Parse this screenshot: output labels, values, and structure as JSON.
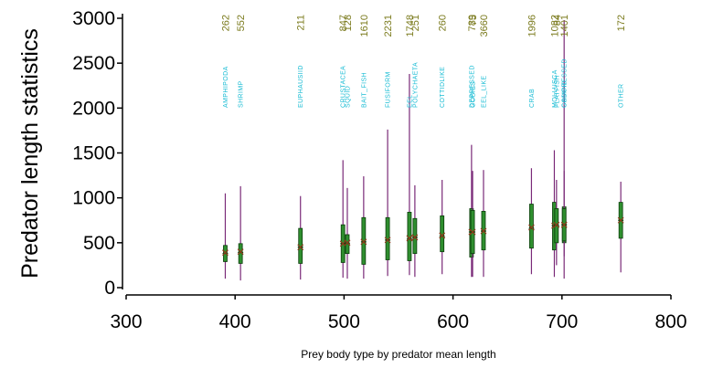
{
  "chart_data": {
    "type": "box",
    "xlabel": "Prey body type by predator mean length",
    "ylabel": "Predator length statistics",
    "xlim": [
      300,
      800
    ],
    "ylim": [
      0,
      3000
    ],
    "xticks": [
      300,
      400,
      500,
      600,
      700,
      800
    ],
    "yticks": [
      0,
      500,
      1000,
      1500,
      2000,
      2500,
      3000
    ],
    "colors": {
      "whisker": "#7a2a78",
      "box_fill": "#2f8f2f",
      "box_stroke": "#0a3d0a",
      "mean_marker": "#8b3a1a",
      "count_text": "#7b7b1e",
      "type_text": "#19bcd4"
    },
    "boxes": [
      {
        "type": "AMPHIPODA",
        "count": "262",
        "x": 391,
        "min": 100,
        "q1": 290,
        "median": 380,
        "q3": 470,
        "max": 1050,
        "mean": 390
      },
      {
        "type": "SHRIMP",
        "count": "552",
        "x": 405,
        "min": 80,
        "q1": 270,
        "median": 390,
        "q3": 490,
        "max": 1130,
        "mean": 400
      },
      {
        "type": "EUPHAUSIID",
        "count": "211",
        "x": 460,
        "min": 90,
        "q1": 270,
        "median": 450,
        "q3": 660,
        "max": 1020,
        "mean": 450
      },
      {
        "type": "CRUSTACEA",
        "count": "847",
        "x": 499,
        "min": 110,
        "q1": 280,
        "median": 490,
        "q3": 700,
        "max": 1420,
        "mean": 490
      },
      {
        "type": "SQUID",
        "count": "128",
        "x": 503,
        "min": 100,
        "q1": 380,
        "median": 490,
        "q3": 590,
        "max": 1110,
        "mean": 500
      },
      {
        "type": "BAIT_FISH",
        "count": "1610",
        "x": 518,
        "min": 100,
        "q1": 260,
        "median": 510,
        "q3": 780,
        "max": 1240,
        "mean": 510
      },
      {
        "type": "FUSIFORM",
        "count": "2231",
        "x": 540,
        "min": 130,
        "q1": 310,
        "median": 530,
        "q3": 780,
        "max": 1760,
        "mean": 530
      },
      {
        "type": "EEL",
        "count": "1748",
        "x": 560,
        "min": 140,
        "q1": 300,
        "median": 540,
        "q3": 840,
        "max": 2380,
        "mean": 550
      },
      {
        "type": "POLYCHAETA",
        "count": "251",
        "x": 565,
        "min": 120,
        "q1": 380,
        "median": 560,
        "q3": 770,
        "max": 1140,
        "mean": 560
      },
      {
        "type": "COTTIDLIKE",
        "count": "260",
        "x": 590,
        "min": 150,
        "q1": 400,
        "median": 570,
        "q3": 800,
        "max": 1200,
        "mean": 580
      },
      {
        "type": "DEPRESSED",
        "count": "789",
        "x": 617,
        "min": 120,
        "q1": 340,
        "median": 620,
        "q3": 880,
        "max": 1590,
        "mean": 620
      },
      {
        "type": "GOBIES",
        "count": "75",
        "x": 618,
        "min": 120,
        "q1": 380,
        "median": 620,
        "q3": 860,
        "max": 1300,
        "mean": 620
      },
      {
        "type": "EEL_LIKE",
        "count": "3660",
        "x": 628,
        "min": 120,
        "q1": 420,
        "median": 630,
        "q3": 850,
        "max": 1310,
        "mean": 630
      },
      {
        "type": "CRAB",
        "count": "1996",
        "x": 672,
        "min": 150,
        "q1": 440,
        "median": 660,
        "q3": 930,
        "max": 1330,
        "mean": 670
      },
      {
        "type": "MOLLUSCA",
        "count": "1082",
        "x": 693,
        "min": 120,
        "q1": 420,
        "median": 690,
        "q3": 950,
        "max": 1530,
        "mean": 690
      },
      {
        "type": "FLATFISH",
        "count": "84",
        "x": 695,
        "min": 250,
        "q1": 500,
        "median": 690,
        "q3": 880,
        "max": 1200,
        "mean": 700
      },
      {
        "type": "GADOID",
        "count": "1401",
        "x": 702,
        "min": 100,
        "q1": 500,
        "median": 700,
        "q3": 900,
        "max": 2980,
        "mean": 700
      },
      {
        "type": "COMPRESSED",
        "count": "",
        "x": 702,
        "min": 350,
        "q1": 520,
        "median": 700,
        "q3": 880,
        "max": 1300,
        "mean": 700
      },
      {
        "type": "OTHER",
        "count": "172",
        "x": 754,
        "min": 170,
        "q1": 550,
        "median": 750,
        "q3": 950,
        "max": 1180,
        "mean": 750
      }
    ]
  }
}
